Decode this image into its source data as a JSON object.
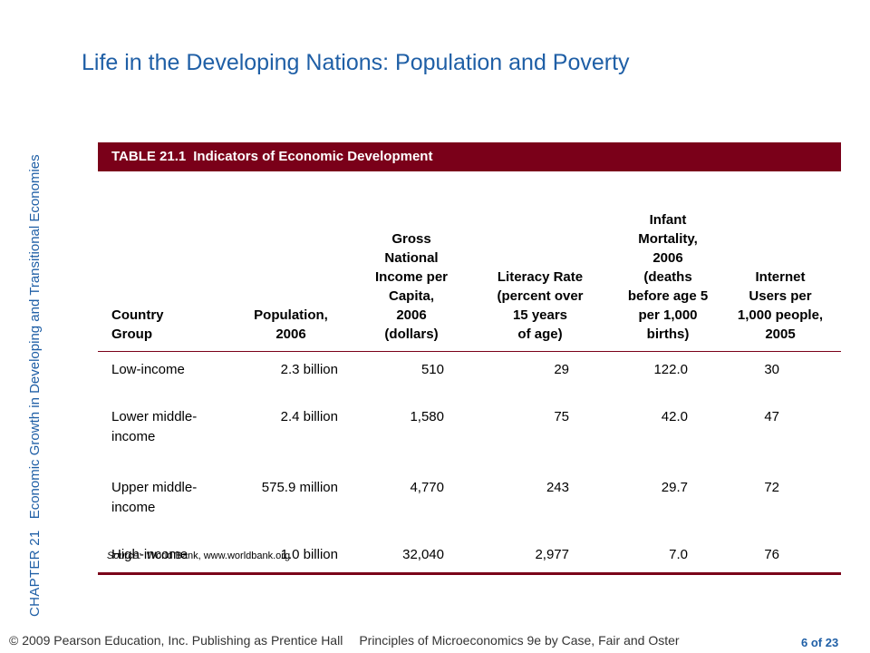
{
  "sidebar": {
    "chapter": "CHAPTER 21",
    "subtitle": "Economic Growth in Developing and Transitional Economies"
  },
  "title": "Life in the Developing Nations:  Population and Poverty",
  "table": {
    "caption_label": "TABLE 21.1",
    "caption_text": "Indicators of Economic Development",
    "headers": [
      "Country\nGroup",
      "Population,\n2006",
      "Gross\nNational\nIncome per\nCapita,\n2006\n(dollars)",
      "Literacy Rate\n(percent over\n15 years\nof age)",
      "Infant\nMortality,\n2006\n(deaths\nbefore age 5\nper 1,000\nbirths)",
      "Internet\nUsers per\n1,000 people,\n2005"
    ],
    "rows": [
      [
        "Low-income",
        "2.3 billion",
        "510",
        "29",
        "122.0",
        "30"
      ],
      [
        "Lower middle-\nincome",
        "2.4 billion",
        "1,580",
        "75",
        "42.0",
        "47"
      ],
      [
        "Upper middle-\nincome",
        "575.9 million",
        "4,770",
        "243",
        "29.7",
        "72"
      ],
      [
        "High-income",
        "1.0 billion",
        "32,040",
        "2,977",
        "7.0",
        "76"
      ]
    ],
    "source_label": "Source:",
    "source_text": "World Bank, www.worldbank.org"
  },
  "footer": {
    "copyright": "© 2009 Pearson Education, Inc. Publishing as Prentice Hall",
    "book": "Principles of Microeconomics 9e by Case, Fair and Oster",
    "page": "6 of 23"
  },
  "colors": {
    "accent": "#1f5fa6",
    "band": "#7a0019"
  }
}
